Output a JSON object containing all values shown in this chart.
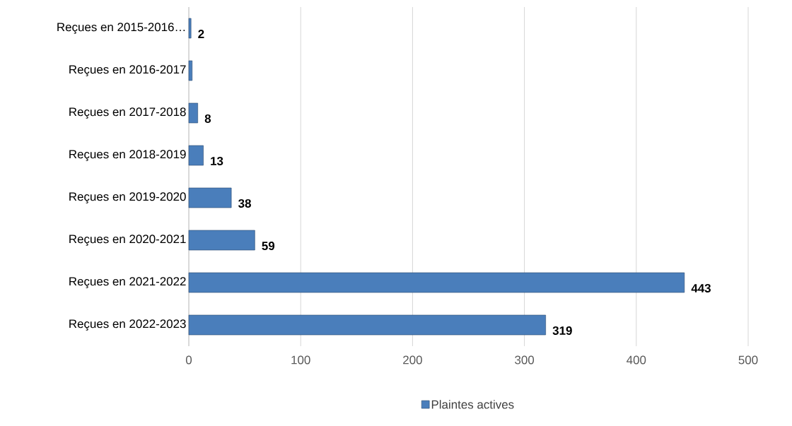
{
  "chart_data": {
    "type": "bar",
    "orientation": "horizontal",
    "categories": [
      "Reçues en 2015-2016…",
      "Reçues en 2016-2017",
      "Reçues en 2017-2018",
      "Reçues en 2018-2019",
      "Reçues en 2019-2020",
      "Reçues en 2020-2021",
      "Reçues en 2021-2022",
      "Reçues en 2022-2023"
    ],
    "series": [
      {
        "name": "Plaintes actives",
        "color": "#4a7ebb",
        "values": [
          2,
          3,
          8,
          13,
          38,
          59,
          443,
          319
        ],
        "value_labels": [
          "2",
          null,
          "8",
          "13",
          "38",
          "59",
          "443",
          "319"
        ]
      }
    ],
    "xlim": [
      0,
      500
    ],
    "xticks": [
      0,
      100,
      200,
      300,
      400,
      500
    ],
    "grid": "x",
    "legend": "bottom"
  }
}
